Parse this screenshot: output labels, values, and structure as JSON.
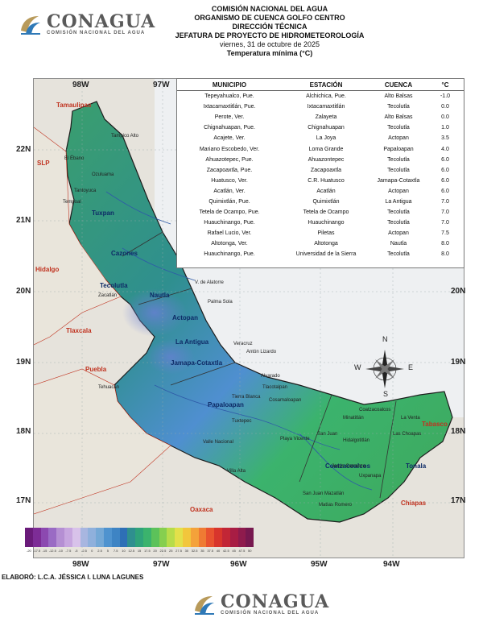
{
  "header": {
    "line1": "COMISIÓN NACIONAL DEL AGUA",
    "line2": "ORGANISMO DE CUENCA GOLFO CENTRO",
    "line3": "DIRECCIÓN TÉCNICA",
    "line4": "JEFATURA DE PROYECTO DE HIDROMETEOROLOGÍA",
    "date": "viernes, 31 de octubre de 2025",
    "subtitle": "Temperatura mínima (°C)"
  },
  "logo": {
    "name": "CONAGUA",
    "sub": "COMISIÓN NACIONAL DEL AGUA"
  },
  "table": {
    "headers": [
      "MUNICIPIO",
      "ESTACIÓN",
      "CUENCA",
      "°C"
    ],
    "rows": [
      [
        "Tepeyahualco, Pue.",
        "Alchichica, Pue.",
        "Alto Balsas",
        "-1.0"
      ],
      [
        "Ixtacamaxtitlán, Pue.",
        "Ixtacamaxtitlán",
        "Tecolutla",
        "0.0"
      ],
      [
        "Perote, Ver.",
        "Zalayeta",
        "Alto Balsas",
        "0.0"
      ],
      [
        "Chignahuapan, Pue.",
        "Chignahuapan",
        "Tecolutla",
        "1.0"
      ],
      [
        "Acajete, Ver.",
        "La Joya",
        "Actopan",
        "3.5"
      ],
      [
        "Mariano Escobedo, Ver.",
        "Loma Grande",
        "Papaloapan",
        "4.0"
      ],
      [
        "Ahuazotepec, Pue.",
        "Ahuazontepec",
        "Tecolutla",
        "6.0"
      ],
      [
        "Zacapoaxtla, Pue.",
        "Zacapoaxtla",
        "Tecolutla",
        "6.0"
      ],
      [
        "Huatusco, Ver.",
        "C.R. Huatusco",
        "Jamapa-Cotaxtla",
        "6.0"
      ],
      [
        "Acatlán, Ver.",
        "Acatlán",
        "Actopan",
        "6.0"
      ],
      [
        "Quimixtlán, Pue.",
        "Quimixtlán",
        "La Antigua",
        "7.0"
      ],
      [
        "Tetela de Ocampo, Pue.",
        "Tetela de Ocampo",
        "Tecolutla",
        "7.0"
      ],
      [
        "Huauchinango, Pue.",
        "Huauchinango",
        "Tecolutla",
        "7.0"
      ],
      [
        "Rafael Lucio, Ver.",
        "Piletas",
        "Actopan",
        "7.5"
      ],
      [
        "Altotonga, Ver.",
        "Altotonga",
        "Nautla",
        "8.0"
      ],
      [
        "Huauchinango, Pue.",
        "Universidad de la Sierra",
        "Tecolutla",
        "8.0"
      ]
    ]
  },
  "coords": {
    "top": [
      "98W",
      "97W"
    ],
    "bottom": [
      "98W",
      "97W",
      "96W",
      "95W",
      "94W"
    ],
    "left": [
      "22N",
      "21N",
      "20N",
      "19N",
      "18N",
      "17N"
    ],
    "right": [
      "20N",
      "19N",
      "18N",
      "17N"
    ]
  },
  "states": {
    "tamaulipas": "Tamaulipas",
    "slp": "SLP",
    "hidalgo": "Hidalgo",
    "tlaxcala": "Tlaxcala",
    "puebla": "Puebla",
    "oaxaca": "Oaxaca",
    "chiapas": "Chiapas",
    "tabasco": "Tabasco"
  },
  "basins": {
    "tuxpan": "Tuxpan",
    "cazones": "Cazones",
    "tecolutla": "Tecolutla",
    "nautla": "Nautla",
    "actopan": "Actopan",
    "antigua": "La Antigua",
    "jamapa": "Jamapa-Cotaxtla",
    "papaloapan": "Papaloapan",
    "coatzacoalcos": "Coatzacoalcos",
    "tonala": "Tonala"
  },
  "places": {
    "tampico_alto": "Tampico Alto",
    "ebano": "El Ébano",
    "ozuluama": "Ozuluama",
    "tantoyuca": "Tantoyuca",
    "tempoal": "Tempoal",
    "alatorre": "V. de Alatorre",
    "palma_sola": "Palma Sola",
    "zacatlan": "Zacatlán",
    "veracruz": "Veracruz",
    "anton_lizardo": "Antón Lizardo",
    "alvarado": "Alvarado",
    "tlacotalpan": "Tlacotalpan",
    "cosamaloapan": "Cosamaloapan",
    "tierra_blanca": "Tierra Blanca",
    "tuxtepec": "Tuxtepec",
    "playa_vicente": "Playa Vicente",
    "san_juan": "San Juan",
    "minatitlan": "Minatitlán",
    "hidalgotitlan": "Hidalgotitlán",
    "jesus_carranza": "Jesús Carranza",
    "uxpanapa": "Uxpanapa",
    "matias_romero": "Matías Romero",
    "las_choapas": "Las Choapas",
    "la_venta": "La Venta",
    "tehuacan": "Tehuacán",
    "valle_nacional": "Valle Nacional",
    "villa_alta": "Villa Alta",
    "san_juan_mazatlan": "San Juan Mazatlán",
    "coatzacoalcos_city": "Coatzacoalcos"
  },
  "legend": {
    "ticks": [
      "-20",
      "-17.5",
      "-15",
      "-12.5",
      "-10",
      "-7.5",
      "-5",
      "-2.5",
      "0",
      "2.5",
      "5",
      "7.5",
      "10",
      "12.5",
      "15",
      "17.5",
      "20",
      "22.5",
      "25",
      "27.5",
      "30",
      "32.5",
      "35",
      "37.5",
      "40",
      "42.5",
      "45",
      "47.5",
      "50"
    ],
    "colors": [
      "#6a1b7a",
      "#7d2c96",
      "#8c49b0",
      "#9a6bc4",
      "#b58fd3",
      "#c7a6df",
      "#d8c2ea",
      "#a8b6e0",
      "#8fb0dc",
      "#74a8d6",
      "#4f93cf",
      "#3e84c4",
      "#2e6fb6",
      "#2f8f8f",
      "#2fa37a",
      "#3bb36d",
      "#5cc25a",
      "#86cf4f",
      "#b7dc4a",
      "#e3e04a",
      "#f2c63c",
      "#f4a23a",
      "#ef7b33",
      "#e8532f",
      "#d8352c",
      "#c22636",
      "#a81d44",
      "#8f1b4d",
      "#77184f"
    ]
  },
  "compass": {
    "n": "N",
    "s": "S",
    "e": "E",
    "w": "W"
  },
  "footer": "ELABORÓ: L.C.A. JÉSSICA I. LUNA LAGUNES"
}
